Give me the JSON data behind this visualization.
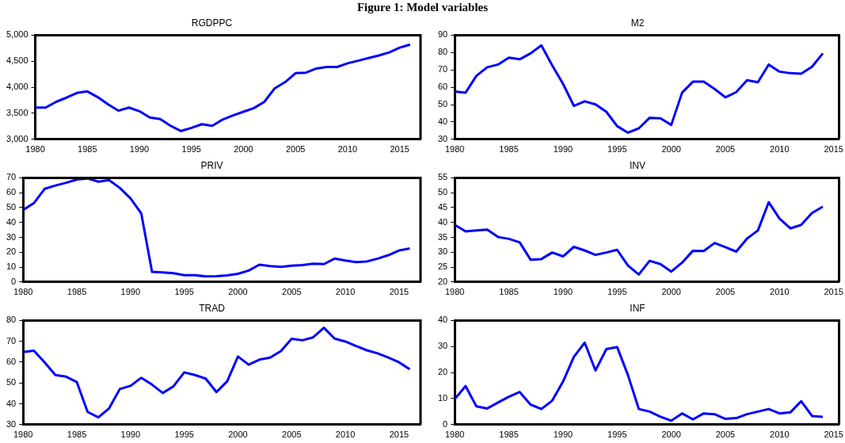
{
  "chart_data": [
    {
      "type": "line",
      "title": "RGDPPC",
      "annotations": [
        "Figure 1: Model variables"
      ],
      "color": "#0000ff",
      "grid": false,
      "legend": false,
      "marker": "none",
      "line_style": "solid",
      "x": [
        1980,
        1981,
        1982,
        1983,
        1984,
        1985,
        1986,
        1987,
        1988,
        1989,
        1990,
        1991,
        1992,
        1993,
        1994,
        1995,
        1996,
        1997,
        1998,
        1999,
        2000,
        2001,
        2002,
        2003,
        2004,
        2005,
        2006,
        2007,
        2008,
        2009,
        2010,
        2011,
        2012,
        2013,
        2014,
        2015,
        2016
      ],
      "values": [
        3610,
        3610,
        3720,
        3800,
        3890,
        3920,
        3810,
        3670,
        3550,
        3610,
        3540,
        3420,
        3390,
        3260,
        3160,
        3220,
        3290,
        3260,
        3380,
        3460,
        3530,
        3600,
        3720,
        3980,
        4100,
        4270,
        4280,
        4360,
        4390,
        4390,
        4460,
        4510,
        4560,
        4610,
        4670,
        4760,
        4820
      ],
      "xlim": [
        1980,
        2017
      ],
      "xticks": [
        1980,
        1985,
        1990,
        1995,
        2000,
        2005,
        2010,
        2015
      ],
      "ylim": [
        3000,
        5000
      ],
      "yticks": [
        {
          "value": 3000,
          "label": "3,000"
        },
        {
          "value": 3500,
          "label": "3,500"
        },
        {
          "value": 4000,
          "label": "4,000"
        },
        {
          "value": 4500,
          "label": "4,500"
        },
        {
          "value": 5000,
          "label": "5,000"
        }
      ]
    },
    {
      "type": "line",
      "title": "M2",
      "color": "#0000ff",
      "grid": false,
      "legend": false,
      "marker": "none",
      "line_style": "solid",
      "x": [
        1980,
        1981,
        1982,
        1983,
        1984,
        1985,
        1986,
        1987,
        1988,
        1989,
        1990,
        1991,
        1992,
        1993,
        1994,
        1995,
        1996,
        1997,
        1998,
        1999,
        2000,
        2001,
        2002,
        2003,
        2004,
        2005,
        2006,
        2007,
        2008,
        2009,
        2010,
        2011,
        2012,
        2013,
        2014
      ],
      "values": [
        57.5,
        56.9,
        66.6,
        71.5,
        73.1,
        77.1,
        76.1,
        79.5,
        84.1,
        72.6,
        62.0,
        49.3,
        51.9,
        50.1,
        45.9,
        37.6,
        33.8,
        36.3,
        42.4,
        42.1,
        38.3,
        56.9,
        63.2,
        63.2,
        59.0,
        54.2,
        57.2,
        64.0,
        62.9,
        73.1,
        69.0,
        68.1,
        67.8,
        71.8,
        79.5
      ],
      "xlim": [
        1980,
        2015.5
      ],
      "xticks": [
        1980,
        1985,
        1990,
        1995,
        2000,
        2005,
        2010,
        2015
      ],
      "ylim": [
        30,
        90
      ],
      "yticks": [
        30,
        40,
        50,
        60,
        70,
        80,
        90
      ]
    },
    {
      "type": "line",
      "title": "PRIV",
      "color": "#0000ff",
      "grid": false,
      "legend": false,
      "marker": "none",
      "line_style": "solid",
      "x": [
        1980,
        1981,
        1982,
        1983,
        1984,
        1985,
        1986,
        1987,
        1988,
        1989,
        1990,
        1991,
        1992,
        1993,
        1994,
        1995,
        1996,
        1997,
        1998,
        1999,
        2000,
        2001,
        2002,
        2003,
        2004,
        2005,
        2006,
        2007,
        2008,
        2009,
        2010,
        2011,
        2012,
        2013,
        2014,
        2015,
        2016
      ],
      "values": [
        48.4,
        53.0,
        62.6,
        64.8,
        66.7,
        68.9,
        69.6,
        67.4,
        68.5,
        63.2,
        56.2,
        46.0,
        6.8,
        6.4,
        5.9,
        4.6,
        4.6,
        3.7,
        3.9,
        4.4,
        5.5,
        7.7,
        11.6,
        10.7,
        10.1,
        11.0,
        11.4,
        12.3,
        12.0,
        15.7,
        14.4,
        13.3,
        13.8,
        15.7,
        18.0,
        21.2,
        22.5
      ],
      "xlim": [
        1980,
        2017
      ],
      "xticks": [
        1980,
        1985,
        1990,
        1995,
        2000,
        2005,
        2010,
        2015
      ],
      "ylim": [
        0,
        70
      ],
      "yticks": [
        0,
        10,
        20,
        30,
        40,
        50,
        60,
        70
      ]
    },
    {
      "type": "line",
      "title": "INV",
      "color": "#0000ff",
      "grid": false,
      "legend": false,
      "marker": "none",
      "line_style": "solid",
      "x": [
        1980,
        1981,
        1982,
        1983,
        1984,
        1985,
        1986,
        1987,
        1988,
        1989,
        1990,
        1991,
        1992,
        1993,
        1994,
        1995,
        1996,
        1997,
        1998,
        1999,
        2000,
        2001,
        2002,
        2003,
        2004,
        2005,
        2006,
        2007,
        2008,
        2009,
        2010,
        2011,
        2012,
        2013,
        2014
      ],
      "values": [
        39.2,
        37.0,
        37.3,
        37.6,
        35.1,
        34.5,
        33.3,
        27.5,
        27.7,
        29.9,
        28.6,
        31.8,
        30.6,
        29.1,
        29.9,
        30.8,
        25.5,
        22.5,
        27.1,
        26.0,
        23.5,
        26.5,
        30.5,
        30.4,
        33.1,
        31.7,
        30.2,
        34.6,
        37.3,
        46.8,
        41.3,
        38.0,
        39.2,
        43.2,
        45.3
      ],
      "xlim": [
        1980,
        2015.5
      ],
      "xticks": [
        1980,
        1985,
        1990,
        1995,
        2000,
        2005,
        2010,
        2015
      ],
      "ylim": [
        20,
        55
      ],
      "yticks": [
        20,
        25,
        30,
        35,
        40,
        45,
        50,
        55
      ]
    },
    {
      "type": "line",
      "title": "TRAD",
      "color": "#0000ff",
      "grid": false,
      "legend": false,
      "marker": "none",
      "line_style": "solid",
      "x": [
        1980,
        1981,
        1982,
        1983,
        1984,
        1985,
        1986,
        1987,
        1988,
        1989,
        1990,
        1991,
        1992,
        1993,
        1994,
        1995,
        1996,
        1997,
        1998,
        1999,
        2000,
        2001,
        2002,
        2003,
        2004,
        2005,
        2006,
        2007,
        2008,
        2009,
        2010,
        2011,
        2012,
        2013,
        2014,
        2015,
        2016
      ],
      "values": [
        64.8,
        65.5,
        59.9,
        53.8,
        53.0,
        50.4,
        36.1,
        33.5,
        37.8,
        47.1,
        48.6,
        52.5,
        49.2,
        45.2,
        48.4,
        55.1,
        53.8,
        52.1,
        45.6,
        50.8,
        62.7,
        58.8,
        61.2,
        62.2,
        65.3,
        71.2,
        70.5,
        71.9,
        76.5,
        71.3,
        69.9,
        67.7,
        65.7,
        64.2,
        62.2,
        59.9,
        56.6
      ],
      "xlim": [
        1980,
        2017
      ],
      "xticks": [
        1980,
        1985,
        1990,
        1995,
        2000,
        2005,
        2010,
        2015
      ],
      "ylim": [
        30,
        80
      ],
      "yticks": [
        30,
        40,
        50,
        60,
        70,
        80
      ]
    },
    {
      "type": "line",
      "title": "INF",
      "color": "#0000ff",
      "grid": false,
      "legend": false,
      "marker": "none",
      "line_style": "solid",
      "x": [
        1980,
        1981,
        1982,
        1983,
        1984,
        1985,
        1986,
        1987,
        1988,
        1989,
        1990,
        1991,
        1992,
        1993,
        1994,
        1995,
        1996,
        1997,
        1998,
        1999,
        2000,
        2001,
        2002,
        2003,
        2004,
        2005,
        2006,
        2007,
        2008,
        2009,
        2010,
        2011,
        2012,
        2013,
        2014
      ],
      "values": [
        9.8,
        14.8,
        7.0,
        6.2,
        8.5,
        10.7,
        12.5,
        7.7,
        6.0,
        9.2,
        16.5,
        26.0,
        31.5,
        20.8,
        29.0,
        29.8,
        19.0,
        6.0,
        5.0,
        3.0,
        1.5,
        4.3,
        2.0,
        4.3,
        4.0,
        2.2,
        2.5,
        4.0,
        5.0,
        6.0,
        4.3,
        4.7,
        9.0,
        3.3,
        3.0
      ],
      "xlim": [
        1980,
        2015.5
      ],
      "xticks": [
        1980,
        1985,
        1990,
        1995,
        2000,
        2005,
        2010,
        2015
      ],
      "ylim": [
        0,
        40
      ],
      "yticks": [
        0,
        10,
        20,
        30,
        40
      ]
    }
  ]
}
